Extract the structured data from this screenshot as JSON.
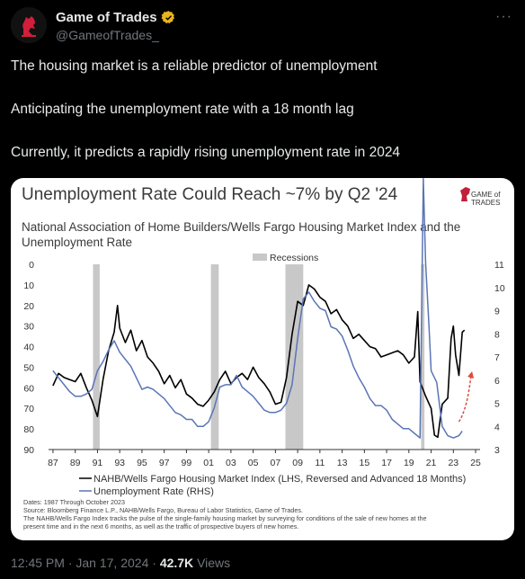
{
  "author": {
    "display_name": "Game of Trades",
    "handle": "@GameofTrades_",
    "verified_color": "#e8b420"
  },
  "tweet": {
    "lines": [
      "The housing market is a reliable predictor of unemployment",
      "Anticipating the unemployment rate with a 18 month lag",
      "Currently, it predicts a rapidly rising unemployment rate in 2024"
    ],
    "time": "12:45 PM",
    "date": "Jan 17, 2024",
    "views_count": "42.7K",
    "views_label": "Views"
  },
  "chart_data": {
    "type": "line",
    "title": "Unemployment Rate Could Reach ~7% by Q2 '24",
    "subtitle": "National Association of Home Builders/Wells Fargo Housing Market Index and the Unemployment Rate",
    "logo_text": [
      "GAME of",
      "TRADES"
    ],
    "recession_label": "Recessions",
    "x_ticks": [
      "87",
      "89",
      "91",
      "93",
      "95",
      "97",
      "99",
      "01",
      "03",
      "05",
      "07",
      "09",
      "11",
      "13",
      "15",
      "17",
      "19",
      "21",
      "23",
      "25"
    ],
    "left_ticks": [
      "0",
      "10",
      "20",
      "30",
      "40",
      "50",
      "60",
      "70",
      "80",
      "90"
    ],
    "right_ticks": [
      "11",
      "10",
      "9",
      "8",
      "7",
      "6",
      "5",
      "4",
      "3"
    ],
    "left_axis": {
      "min": 0,
      "max": 90,
      "reversed": true
    },
    "right_axis": {
      "min": 3,
      "max": 11
    },
    "recessions": [
      [
        1990.6,
        1991.2
      ],
      [
        2001.2,
        2001.9
      ],
      [
        2007.9,
        2009.5
      ],
      [
        2020.1,
        2020.4
      ]
    ],
    "series": [
      {
        "name": "NAHB/Wells Fargo Housing Market Index (LHS, Reversed and Advanced 18 Months)",
        "color": "#000000",
        "axis": "left",
        "points": [
          [
            1987,
            59
          ],
          [
            1987.5,
            53
          ],
          [
            1988,
            55
          ],
          [
            1988.5,
            56
          ],
          [
            1989,
            57
          ],
          [
            1989.5,
            53
          ],
          [
            1990,
            60
          ],
          [
            1990.5,
            66
          ],
          [
            1991,
            74
          ],
          [
            1991.5,
            56
          ],
          [
            1992,
            42
          ],
          [
            1992.5,
            33
          ],
          [
            1992.8,
            20
          ],
          [
            1993,
            31
          ],
          [
            1993.5,
            38
          ],
          [
            1994,
            32
          ],
          [
            1994.5,
            42
          ],
          [
            1995,
            37
          ],
          [
            1995.5,
            45
          ],
          [
            1996,
            48
          ],
          [
            1996.5,
            52
          ],
          [
            1997,
            58
          ],
          [
            1997.5,
            54
          ],
          [
            1998,
            60
          ],
          [
            1998.5,
            56
          ],
          [
            1999,
            63
          ],
          [
            1999.5,
            65
          ],
          [
            2000,
            68
          ],
          [
            2000.5,
            69
          ],
          [
            2001,
            66
          ],
          [
            2001.5,
            62
          ],
          [
            2002,
            56
          ],
          [
            2002.5,
            52
          ],
          [
            2003,
            58
          ],
          [
            2003.5,
            55
          ],
          [
            2004,
            53
          ],
          [
            2004.5,
            56
          ],
          [
            2005,
            50
          ],
          [
            2005.5,
            55
          ],
          [
            2006,
            58
          ],
          [
            2006.5,
            62
          ],
          [
            2007,
            68
          ],
          [
            2007.5,
            67
          ],
          [
            2008,
            55
          ],
          [
            2008.5,
            34
          ],
          [
            2009,
            18
          ],
          [
            2009.5,
            20
          ],
          [
            2010,
            10
          ],
          [
            2010.5,
            12
          ],
          [
            2011,
            16
          ],
          [
            2011.5,
            18
          ],
          [
            2012,
            24
          ],
          [
            2012.5,
            22
          ],
          [
            2013,
            27
          ],
          [
            2013.5,
            30
          ],
          [
            2014,
            36
          ],
          [
            2014.5,
            34
          ],
          [
            2015,
            37
          ],
          [
            2015.5,
            40
          ],
          [
            2016,
            41
          ],
          [
            2016.5,
            45
          ],
          [
            2017,
            44
          ],
          [
            2017.5,
            43
          ],
          [
            2018,
            42
          ],
          [
            2018.5,
            44
          ],
          [
            2019,
            48
          ],
          [
            2019.5,
            45
          ],
          [
            2019.8,
            23
          ],
          [
            2020,
            57
          ],
          [
            2020.5,
            64
          ],
          [
            2021,
            70
          ],
          [
            2021.3,
            83
          ],
          [
            2021.6,
            84
          ],
          [
            2022,
            68
          ],
          [
            2022.5,
            65
          ],
          [
            2022.8,
            36
          ],
          [
            2023,
            30
          ],
          [
            2023.2,
            44
          ],
          [
            2023.5,
            54
          ],
          [
            2023.8,
            33
          ],
          [
            2024,
            32
          ]
        ]
      },
      {
        "name": "Unemployment Rate (RHS)",
        "color": "#5a75b5",
        "axis": "right",
        "points": [
          [
            1987,
            6.4
          ],
          [
            1987.5,
            6.1
          ],
          [
            1988,
            5.8
          ],
          [
            1988.5,
            5.5
          ],
          [
            1989,
            5.3
          ],
          [
            1989.5,
            5.3
          ],
          [
            1990,
            5.4
          ],
          [
            1990.5,
            5.6
          ],
          [
            1991,
            6.4
          ],
          [
            1991.5,
            6.8
          ],
          [
            1992,
            7.3
          ],
          [
            1992.5,
            7.7
          ],
          [
            1993,
            7.2
          ],
          [
            1993.5,
            6.9
          ],
          [
            1994,
            6.6
          ],
          [
            1994.5,
            6.1
          ],
          [
            1995,
            5.6
          ],
          [
            1995.5,
            5.7
          ],
          [
            1996,
            5.6
          ],
          [
            1996.5,
            5.4
          ],
          [
            1997,
            5.2
          ],
          [
            1997.5,
            4.9
          ],
          [
            1998,
            4.6
          ],
          [
            1998.5,
            4.5
          ],
          [
            1999,
            4.3
          ],
          [
            1999.5,
            4.3
          ],
          [
            2000,
            4.0
          ],
          [
            2000.5,
            4.0
          ],
          [
            2001,
            4.2
          ],
          [
            2001.5,
            4.8
          ],
          [
            2002,
            5.7
          ],
          [
            2002.5,
            5.8
          ],
          [
            2003,
            5.8
          ],
          [
            2003.5,
            6.2
          ],
          [
            2004,
            5.7
          ],
          [
            2004.5,
            5.5
          ],
          [
            2005,
            5.3
          ],
          [
            2005.5,
            5.0
          ],
          [
            2006,
            4.7
          ],
          [
            2006.5,
            4.6
          ],
          [
            2007,
            4.6
          ],
          [
            2007.5,
            4.7
          ],
          [
            2008,
            5.0
          ],
          [
            2008.5,
            5.8
          ],
          [
            2009,
            7.8
          ],
          [
            2009.5,
            9.5
          ],
          [
            2010,
            9.8
          ],
          [
            2010.5,
            9.4
          ],
          [
            2011,
            9.1
          ],
          [
            2011.5,
            9.0
          ],
          [
            2012,
            8.3
          ],
          [
            2012.5,
            8.2
          ],
          [
            2013,
            7.9
          ],
          [
            2013.5,
            7.3
          ],
          [
            2014,
            6.6
          ],
          [
            2014.5,
            6.1
          ],
          [
            2015,
            5.7
          ],
          [
            2015.5,
            5.2
          ],
          [
            2016,
            4.9
          ],
          [
            2016.5,
            4.9
          ],
          [
            2017,
            4.7
          ],
          [
            2017.5,
            4.3
          ],
          [
            2018,
            4.1
          ],
          [
            2018.5,
            3.9
          ],
          [
            2019,
            3.9
          ],
          [
            2019.5,
            3.7
          ],
          [
            2020,
            3.5
          ],
          [
            2020.3,
            14.7
          ],
          [
            2020.5,
            11.1
          ],
          [
            2020.8,
            8.4
          ],
          [
            2021,
            6.4
          ],
          [
            2021.5,
            5.9
          ],
          [
            2022,
            4.0
          ],
          [
            2022.5,
            3.6
          ],
          [
            2023,
            3.5
          ],
          [
            2023.5,
            3.6
          ],
          [
            2023.8,
            3.8
          ]
        ]
      }
    ],
    "forecast_arrow_color": "#e04a3a",
    "legend": [
      "NAHB/Wells Fargo Housing Market Index (LHS, Reversed and Advanced 18 Months)",
      "Unemployment Rate (RHS)"
    ],
    "notes": [
      "Dates: 1987 Through October 2023",
      "Source: Bloomberg Finance L.P., NAHB/Wells Fargo, Bureau of Labor Statistics, Game of Trades.",
      "The NAHB/Wells Fargo Index tracks the pulse of the single-family housing market by surveying for conditions of the sale of new homes at the",
      "present time and in the next 6 months, as well as the traffic of prospective buyers of new homes."
    ]
  }
}
